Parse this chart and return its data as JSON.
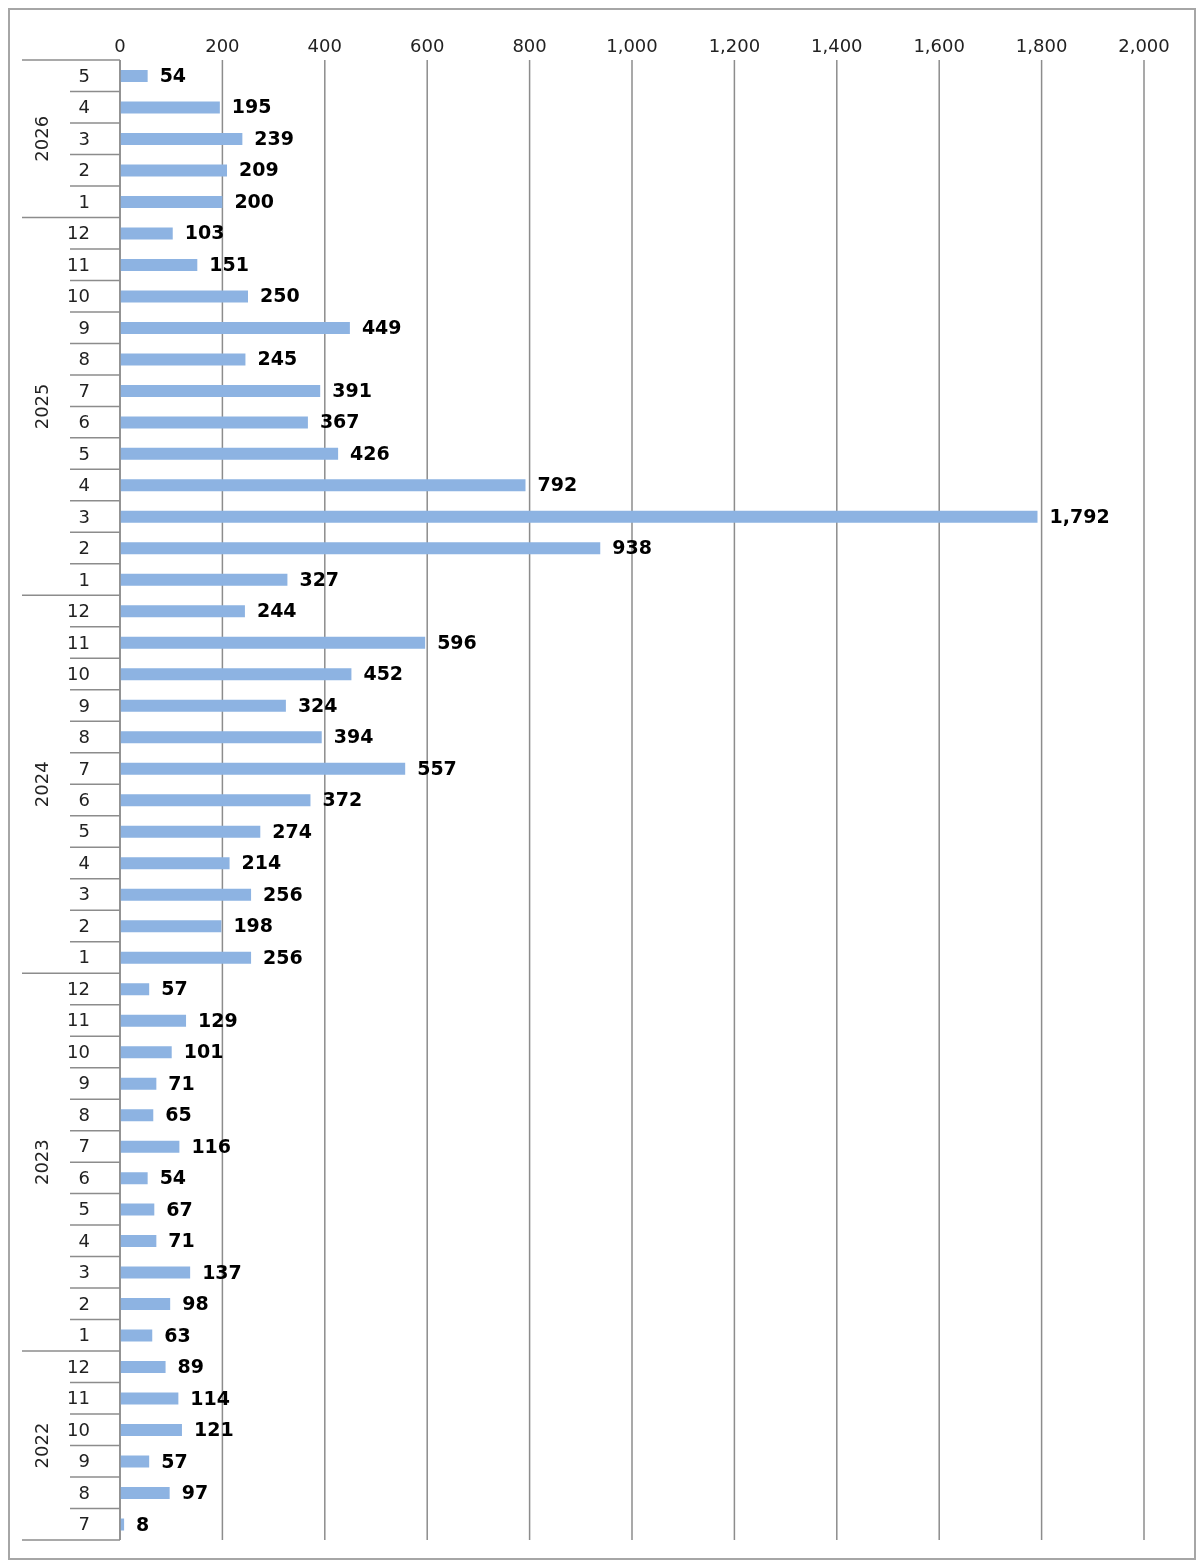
{
  "chart_data": {
    "type": "bar",
    "orientation": "horizontal",
    "categories": [
      "5",
      "4",
      "3",
      "2",
      "1",
      "12",
      "11",
      "10",
      "9",
      "8",
      "7",
      "6",
      "5",
      "4",
      "3",
      "2",
      "1",
      "12",
      "11",
      "10",
      "9",
      "8",
      "7",
      "6",
      "5",
      "4",
      "3",
      "2",
      "1",
      "12",
      "11",
      "10",
      "9",
      "8",
      "7",
      "6",
      "5",
      "4",
      "3",
      "2",
      "1",
      "12",
      "11",
      "10",
      "9",
      "8",
      "7"
    ],
    "values": [
      54,
      195,
      239,
      209,
      200,
      103,
      151,
      250,
      449,
      245,
      391,
      367,
      426,
      792,
      1792,
      938,
      327,
      244,
      596,
      452,
      324,
      394,
      557,
      372,
      274,
      214,
      256,
      198,
      256,
      57,
      129,
      101,
      71,
      65,
      116,
      54,
      67,
      71,
      137,
      98,
      63,
      89,
      114,
      121,
      57,
      97,
      8
    ],
    "value_labels": [
      "54",
      "195",
      "239",
      "209",
      "200",
      "103",
      "151",
      "250",
      "449",
      "245",
      "391",
      "367",
      "426",
      "792",
      "1,792",
      "938",
      "327",
      "244",
      "596",
      "452",
      "324",
      "394",
      "557",
      "372",
      "274",
      "214",
      "256",
      "198",
      "256",
      "57",
      "129",
      "101",
      "71",
      "65",
      "116",
      "54",
      "67",
      "71",
      "137",
      "98",
      "63",
      "89",
      "114",
      "121",
      "57",
      "97",
      "8"
    ],
    "color": "#8db3e2",
    "xlim": [
      0,
      2000
    ],
    "xticks": [
      0,
      200,
      400,
      600,
      800,
      {
        "value": 1000,
        "label": "1,000"
      },
      {
        "value": 1200,
        "label": "1,200"
      },
      {
        "value": 1400,
        "label": "1,400"
      },
      {
        "value": 1600,
        "label": "1,600"
      },
      {
        "value": 1800,
        "label": "1,800"
      },
      {
        "value": 2000,
        "label": "2,000"
      }
    ],
    "annotations": [
      "2026",
      "2025",
      "2024",
      "2023",
      "2022"
    ],
    "grid": "x",
    "legend": false
  }
}
